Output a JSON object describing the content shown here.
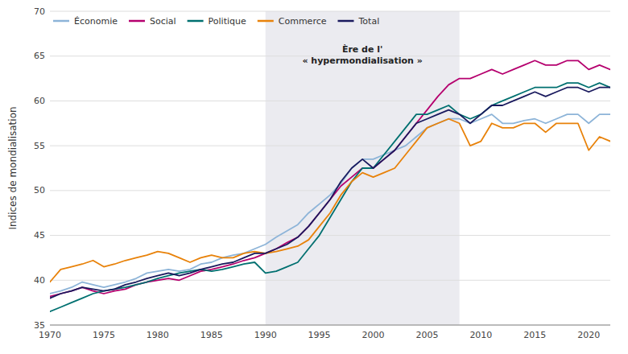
{
  "chart_data": {
    "type": "line",
    "ylabel": "Indices de mondialisation",
    "x": [
      1970,
      1971,
      1972,
      1973,
      1974,
      1975,
      1976,
      1977,
      1978,
      1979,
      1980,
      1981,
      1982,
      1983,
      1984,
      1985,
      1986,
      1987,
      1988,
      1989,
      1990,
      1991,
      1992,
      1993,
      1994,
      1995,
      1996,
      1997,
      1998,
      1999,
      2000,
      2001,
      2002,
      2003,
      2004,
      2005,
      2006,
      2007,
      2008,
      2009,
      2010,
      2011,
      2012,
      2013,
      2014,
      2015,
      2016,
      2017,
      2018,
      2019,
      2020,
      2021,
      2022
    ],
    "series": [
      {
        "name": "Économie",
        "color": "#8DB4D8",
        "values": [
          38.5,
          38.8,
          39.2,
          39.8,
          39.5,
          39.2,
          39.5,
          39.8,
          40.2,
          40.8,
          41.0,
          41.2,
          41.0,
          41.2,
          41.8,
          42.0,
          42.5,
          42.8,
          43.0,
          43.5,
          44.0,
          44.8,
          45.5,
          46.2,
          47.5,
          48.5,
          49.5,
          50.8,
          52.5,
          53.5,
          53.5,
          54.0,
          54.5,
          55.0,
          56.0,
          57.0,
          57.5,
          58.0,
          58.0,
          57.5,
          58.0,
          58.5,
          57.5,
          57.5,
          57.8,
          58.0,
          57.5,
          58.0,
          58.5,
          58.5,
          57.5,
          58.5,
          58.5
        ]
      },
      {
        "name": "Social",
        "color": "#B5006E",
        "values": [
          38.2,
          38.5,
          38.8,
          39.2,
          38.8,
          38.5,
          38.8,
          39.0,
          39.5,
          39.8,
          40.0,
          40.2,
          40.0,
          40.5,
          41.0,
          41.2,
          41.5,
          41.8,
          42.2,
          42.5,
          43.0,
          43.5,
          44.2,
          44.8,
          46.0,
          47.5,
          49.0,
          50.5,
          51.5,
          52.5,
          52.5,
          53.5,
          54.5,
          56.0,
          57.5,
          59.0,
          60.5,
          61.8,
          62.5,
          62.5,
          63.0,
          63.5,
          63.0,
          63.5,
          64.0,
          64.5,
          64.0,
          64.0,
          64.5,
          64.5,
          63.5,
          64.0,
          63.5
        ]
      },
      {
        "name": "Politique",
        "color": "#007070",
        "values": [
          36.5,
          37.0,
          37.5,
          38.0,
          38.5,
          38.8,
          39.0,
          39.2,
          39.5,
          39.8,
          40.2,
          40.5,
          40.8,
          41.0,
          41.2,
          41.0,
          41.2,
          41.5,
          41.8,
          42.0,
          40.8,
          41.0,
          41.5,
          42.0,
          43.5,
          45.0,
          47.0,
          49.0,
          51.0,
          52.5,
          52.5,
          54.0,
          55.5,
          57.0,
          58.5,
          58.5,
          59.0,
          59.5,
          58.5,
          58.0,
          58.5,
          59.5,
          60.0,
          60.5,
          61.0,
          61.5,
          61.5,
          61.5,
          62.0,
          62.0,
          61.5,
          62.0,
          61.5
        ]
      },
      {
        "name": "Commerce",
        "color": "#E8820A",
        "values": [
          39.8,
          41.2,
          41.5,
          41.8,
          42.2,
          41.5,
          41.8,
          42.2,
          42.5,
          42.8,
          43.2,
          43.0,
          42.5,
          42.0,
          42.5,
          42.8,
          42.5,
          42.5,
          43.0,
          43.2,
          43.0,
          43.2,
          43.5,
          43.8,
          44.5,
          46.0,
          47.5,
          49.5,
          51.0,
          52.0,
          51.5,
          52.0,
          52.5,
          54.0,
          55.5,
          57.0,
          57.5,
          58.0,
          57.5,
          55.0,
          55.5,
          57.5,
          57.0,
          57.0,
          57.5,
          57.5,
          56.5,
          57.5,
          57.5,
          57.5,
          54.5,
          56.0,
          55.5
        ]
      },
      {
        "name": "Total",
        "color": "#1A1A5E",
        "values": [
          38.0,
          38.5,
          38.8,
          39.2,
          39.0,
          38.8,
          39.0,
          39.5,
          39.8,
          40.2,
          40.5,
          40.8,
          40.5,
          40.8,
          41.2,
          41.5,
          41.8,
          42.0,
          42.5,
          43.0,
          43.0,
          43.5,
          44.0,
          44.8,
          46.0,
          47.5,
          49.0,
          51.0,
          52.5,
          53.5,
          52.5,
          53.5,
          54.5,
          56.0,
          57.5,
          58.0,
          58.5,
          59.0,
          58.5,
          57.5,
          58.5,
          59.5,
          59.5,
          60.0,
          60.5,
          61.0,
          60.5,
          61.0,
          61.5,
          61.5,
          61.0,
          61.5,
          61.5
        ]
      }
    ],
    "xlim": [
      1970,
      2022
    ],
    "xticks": [
      1970,
      1975,
      1980,
      1985,
      1990,
      1995,
      2000,
      2005,
      2010,
      2015,
      2020
    ],
    "ylim": [
      35,
      70
    ],
    "yticks": [
      35,
      40,
      45,
      50,
      55,
      60,
      65,
      70
    ],
    "grid": true,
    "legend": "upper left",
    "spans": [
      {
        "start": 1990,
        "end": 2008,
        "color": "#EBEBF0"
      }
    ],
    "annotations": [
      {
        "text": [
          "Ère de l'",
          "« hypermondialisation »"
        ],
        "x": 1999,
        "y": 66.5
      }
    ]
  }
}
